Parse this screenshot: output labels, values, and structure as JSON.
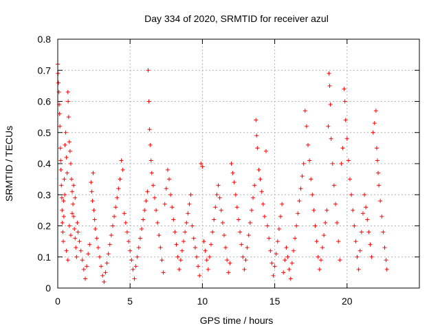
{
  "chart_data": {
    "type": "scatter",
    "title": "Day 334 of 2020, SRMTID for receiver azul",
    "xlabel": "GPS time / hours",
    "ylabel": "SRMTID / TECUs",
    "xlim": [
      0,
      25
    ],
    "ylim": [
      0,
      0.8
    ],
    "xticks": [
      0,
      5,
      10,
      15,
      20
    ],
    "xtick_labels": [
      "0",
      "5",
      "10",
      "15",
      "20"
    ],
    "yticks": [
      0,
      0.1,
      0.2,
      0.3,
      0.4,
      0.5,
      0.6,
      0.7,
      0.8
    ],
    "ytick_labels": [
      "0",
      "0.1",
      "0.2",
      "0.3",
      "0.4",
      "0.5",
      "0.6",
      "0.7",
      "0.8"
    ],
    "grid": true,
    "marker": "+",
    "color": "#ff0000",
    "series": [
      {
        "name": "SRMTID",
        "points": [
          [
            0.0,
            0.72
          ],
          [
            0.02,
            0.69
          ],
          [
            0.05,
            0.66
          ],
          [
            0.08,
            0.63
          ],
          [
            0.1,
            0.59
          ],
          [
            0.12,
            0.56
          ],
          [
            0.15,
            0.52
          ],
          [
            0.18,
            0.45
          ],
          [
            0.2,
            0.41
          ],
          [
            0.22,
            0.38
          ],
          [
            0.25,
            0.33
          ],
          [
            0.28,
            0.29
          ],
          [
            0.3,
            0.25
          ],
          [
            0.32,
            0.21
          ],
          [
            0.35,
            0.18
          ],
          [
            0.38,
            0.15
          ],
          [
            0.4,
            0.28
          ],
          [
            0.42,
            0.23
          ],
          [
            0.45,
            0.35
          ],
          [
            0.48,
            0.3
          ],
          [
            0.5,
            0.46
          ],
          [
            0.55,
            0.5
          ],
          [
            0.6,
            0.42
          ],
          [
            0.65,
            0.37
          ],
          [
            0.7,
            0.63
          ],
          [
            0.72,
            0.6
          ],
          [
            0.75,
            0.55
          ],
          [
            0.8,
            0.47
          ],
          [
            0.85,
            0.44
          ],
          [
            0.9,
            0.4
          ],
          [
            0.95,
            0.35
          ],
          [
            1.0,
            0.31
          ],
          [
            1.05,
            0.27
          ],
          [
            1.1,
            0.23
          ],
          [
            1.15,
            0.19
          ],
          [
            1.2,
            0.16
          ],
          [
            1.25,
            0.13
          ],
          [
            1.3,
            0.1
          ],
          [
            0.6,
            0.12
          ],
          [
            0.7,
            0.09
          ],
          [
            0.8,
            0.2
          ],
          [
            0.9,
            0.17
          ],
          [
            1.0,
            0.24
          ],
          [
            1.1,
            0.33
          ],
          [
            1.2,
            0.29
          ],
          [
            1.35,
            0.21
          ],
          [
            1.4,
            0.18
          ],
          [
            1.5,
            0.15
          ],
          [
            1.6,
            0.12
          ],
          [
            1.7,
            0.09
          ],
          [
            1.8,
            0.06
          ],
          [
            1.9,
            0.03
          ],
          [
            2.0,
            0.07
          ],
          [
            2.1,
            0.11
          ],
          [
            2.2,
            0.14
          ],
          [
            2.3,
            0.34
          ],
          [
            2.35,
            0.31
          ],
          [
            2.4,
            0.28
          ],
          [
            2.45,
            0.37
          ],
          [
            2.5,
            0.25
          ],
          [
            2.55,
            0.22
          ],
          [
            2.6,
            0.19
          ],
          [
            2.7,
            0.16
          ],
          [
            2.8,
            0.13
          ],
          [
            2.9,
            0.1
          ],
          [
            3.0,
            0.07
          ],
          [
            3.1,
            0.04
          ],
          [
            3.2,
            0.02
          ],
          [
            3.3,
            0.05
          ],
          [
            3.4,
            0.08
          ],
          [
            3.5,
            0.11
          ],
          [
            3.6,
            0.14
          ],
          [
            3.7,
            0.17
          ],
          [
            3.8,
            0.2
          ],
          [
            3.9,
            0.23
          ],
          [
            4.0,
            0.26
          ],
          [
            4.1,
            0.29
          ],
          [
            4.2,
            0.32
          ],
          [
            4.3,
            0.35
          ],
          [
            4.4,
            0.41
          ],
          [
            4.5,
            0.38
          ],
          [
            4.6,
            0.24
          ],
          [
            4.7,
            0.21
          ],
          [
            4.8,
            0.18
          ],
          [
            4.9,
            0.15
          ],
          [
            5.0,
            0.12
          ],
          [
            5.1,
            0.09
          ],
          [
            5.2,
            0.06
          ],
          [
            5.3,
            0.03
          ],
          [
            5.4,
            0.07
          ],
          [
            5.5,
            0.1
          ],
          [
            5.6,
            0.13
          ],
          [
            5.7,
            0.16
          ],
          [
            5.8,
            0.19
          ],
          [
            5.9,
            0.22
          ],
          [
            6.0,
            0.25
          ],
          [
            6.1,
            0.28
          ],
          [
            6.2,
            0.31
          ],
          [
            6.25,
            0.7
          ],
          [
            6.3,
            0.6
          ],
          [
            6.35,
            0.51
          ],
          [
            6.4,
            0.46
          ],
          [
            6.45,
            0.41
          ],
          [
            6.5,
            0.37
          ],
          [
            6.6,
            0.33
          ],
          [
            6.7,
            0.29
          ],
          [
            6.8,
            0.25
          ],
          [
            6.9,
            0.21
          ],
          [
            7.0,
            0.17
          ],
          [
            7.1,
            0.13
          ],
          [
            7.2,
            0.09
          ],
          [
            7.3,
            0.05
          ],
          [
            7.4,
            0.27
          ],
          [
            7.5,
            0.32
          ],
          [
            7.6,
            0.38
          ],
          [
            7.7,
            0.35
          ],
          [
            7.8,
            0.3
          ],
          [
            7.9,
            0.26
          ],
          [
            8.0,
            0.22
          ],
          [
            8.1,
            0.18
          ],
          [
            8.2,
            0.14
          ],
          [
            8.3,
            0.1
          ],
          [
            8.4,
            0.06
          ],
          [
            8.5,
            0.09
          ],
          [
            8.6,
            0.12
          ],
          [
            8.7,
            0.15
          ],
          [
            8.8,
            0.18
          ],
          [
            8.9,
            0.21
          ],
          [
            9.0,
            0.24
          ],
          [
            9.1,
            0.27
          ],
          [
            9.2,
            0.3
          ],
          [
            9.3,
            0.2
          ],
          [
            9.4,
            0.16
          ],
          [
            9.5,
            0.13
          ],
          [
            9.6,
            0.1
          ],
          [
            9.7,
            0.07
          ],
          [
            9.8,
            0.04
          ],
          [
            9.9,
            0.4
          ],
          [
            10.0,
            0.39
          ],
          [
            10.1,
            0.15
          ],
          [
            10.2,
            0.12
          ],
          [
            10.3,
            0.09
          ],
          [
            10.4,
            0.06
          ],
          [
            10.5,
            0.1
          ],
          [
            10.6,
            0.14
          ],
          [
            10.7,
            0.18
          ],
          [
            10.8,
            0.22
          ],
          [
            10.9,
            0.26
          ],
          [
            11.0,
            0.3
          ],
          [
            11.1,
            0.33
          ],
          [
            11.2,
            0.29
          ],
          [
            11.3,
            0.25
          ],
          [
            11.4,
            0.21
          ],
          [
            11.5,
            0.17
          ],
          [
            11.6,
            0.13
          ],
          [
            11.7,
            0.09
          ],
          [
            11.8,
            0.05
          ],
          [
            11.9,
            0.08
          ],
          [
            12.0,
            0.4
          ],
          [
            12.1,
            0.37
          ],
          [
            12.2,
            0.34
          ],
          [
            12.3,
            0.3
          ],
          [
            12.4,
            0.26
          ],
          [
            12.5,
            0.22
          ],
          [
            12.6,
            0.18
          ],
          [
            12.7,
            0.14
          ],
          [
            12.8,
            0.1
          ],
          [
            12.9,
            0.06
          ],
          [
            13.0,
            0.09
          ],
          [
            13.1,
            0.13
          ],
          [
            13.2,
            0.17
          ],
          [
            13.3,
            0.21
          ],
          [
            13.4,
            0.25
          ],
          [
            13.5,
            0.29
          ],
          [
            13.6,
            0.33
          ],
          [
            13.7,
            0.54
          ],
          [
            13.75,
            0.49
          ],
          [
            13.8,
            0.45
          ],
          [
            13.9,
            0.38
          ],
          [
            14.0,
            0.35
          ],
          [
            14.1,
            0.31
          ],
          [
            14.2,
            0.27
          ],
          [
            14.3,
            0.23
          ],
          [
            14.4,
            0.44
          ],
          [
            14.5,
            0.2
          ],
          [
            14.6,
            0.16
          ],
          [
            14.7,
            0.12
          ],
          [
            14.8,
            0.08
          ],
          [
            14.9,
            0.04
          ],
          [
            15.0,
            0.07
          ],
          [
            15.1,
            0.11
          ],
          [
            15.2,
            0.15
          ],
          [
            15.3,
            0.19
          ],
          [
            15.4,
            0.23
          ],
          [
            15.5,
            0.27
          ],
          [
            15.6,
            0.05
          ],
          [
            15.7,
            0.09
          ],
          [
            15.8,
            0.13
          ],
          [
            15.9,
            0.1
          ],
          [
            16.0,
            0.06
          ],
          [
            16.1,
            0.03
          ],
          [
            16.2,
            0.08
          ],
          [
            16.3,
            0.12
          ],
          [
            16.4,
            0.16
          ],
          [
            16.5,
            0.2
          ],
          [
            16.6,
            0.24
          ],
          [
            16.7,
            0.28
          ],
          [
            16.8,
            0.32
          ],
          [
            16.9,
            0.36
          ],
          [
            17.0,
            0.4
          ],
          [
            17.1,
            0.57
          ],
          [
            17.2,
            0.52
          ],
          [
            17.3,
            0.46
          ],
          [
            17.4,
            0.41
          ],
          [
            17.5,
            0.35
          ],
          [
            17.6,
            0.3
          ],
          [
            17.7,
            0.25
          ],
          [
            17.8,
            0.2
          ],
          [
            17.9,
            0.15
          ],
          [
            18.0,
            0.1
          ],
          [
            18.1,
            0.06
          ],
          [
            18.2,
            0.09
          ],
          [
            18.3,
            0.13
          ],
          [
            18.4,
            0.17
          ],
          [
            18.5,
            0.21
          ],
          [
            18.6,
            0.25
          ],
          [
            18.7,
            0.52
          ],
          [
            18.75,
            0.69
          ],
          [
            18.8,
            0.65
          ],
          [
            18.85,
            0.59
          ],
          [
            18.9,
            0.48
          ],
          [
            19.0,
            0.4
          ],
          [
            19.1,
            0.33
          ],
          [
            19.2,
            0.27
          ],
          [
            19.3,
            0.21
          ],
          [
            19.4,
            0.15
          ],
          [
            19.5,
            0.09
          ],
          [
            19.6,
            0.4
          ],
          [
            19.7,
            0.45
          ],
          [
            19.8,
            0.64
          ],
          [
            19.85,
            0.6
          ],
          [
            19.9,
            0.54
          ],
          [
            20.0,
            0.48
          ],
          [
            20.1,
            0.41
          ],
          [
            20.2,
            0.35
          ],
          [
            20.3,
            0.3
          ],
          [
            20.4,
            0.25
          ],
          [
            20.5,
            0.2
          ],
          [
            20.6,
            0.15
          ],
          [
            20.7,
            0.1
          ],
          [
            20.8,
            0.06
          ],
          [
            20.9,
            0.12
          ],
          [
            21.0,
            0.18
          ],
          [
            21.1,
            0.24
          ],
          [
            21.2,
            0.3
          ],
          [
            21.3,
            0.26
          ],
          [
            21.4,
            0.22
          ],
          [
            21.5,
            0.18
          ],
          [
            21.6,
            0.14
          ],
          [
            21.7,
            0.1
          ],
          [
            21.8,
            0.5
          ],
          [
            21.9,
            0.53
          ],
          [
            22.0,
            0.57
          ],
          [
            22.05,
            0.45
          ],
          [
            22.1,
            0.41
          ],
          [
            22.15,
            0.37
          ],
          [
            22.2,
            0.33
          ],
          [
            22.3,
            0.28
          ],
          [
            22.4,
            0.23
          ],
          [
            22.5,
            0.18
          ],
          [
            22.6,
            0.13
          ],
          [
            22.7,
            0.09
          ],
          [
            22.75,
            0.06
          ]
        ]
      }
    ]
  }
}
